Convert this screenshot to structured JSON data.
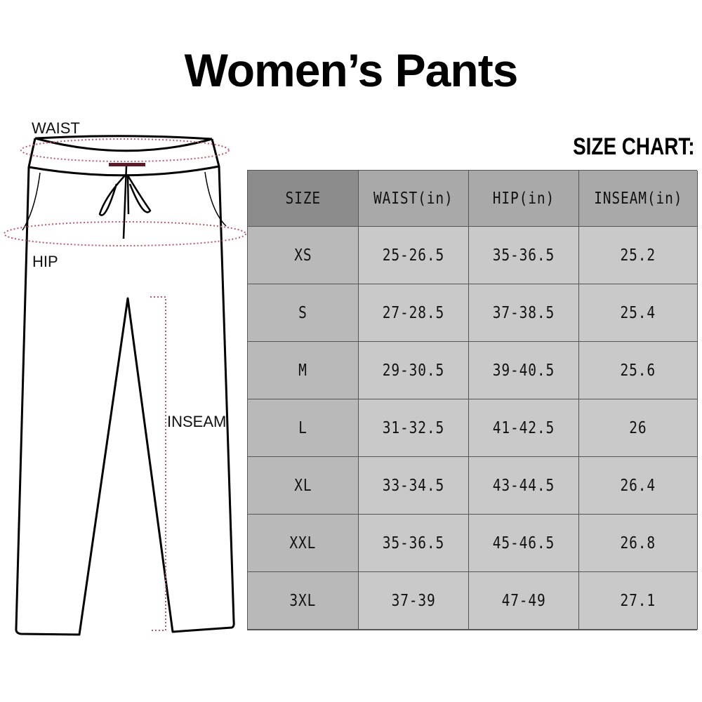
{
  "title": "Women’s Pants",
  "subtitle": "SIZE CHART:",
  "diagram": {
    "labels": {
      "waist": "WAIST",
      "hip": "HIP",
      "inseam": "INSEAM"
    },
    "colors": {
      "outline": "#000000",
      "measure_dots": "#c05a6a"
    }
  },
  "table": {
    "headers": [
      "SIZE",
      "WAIST(in)",
      "HIP(in)",
      "INSEAM(in)"
    ],
    "rows": [
      [
        "XS",
        "25-26.5",
        "35-36.5",
        "25.2"
      ],
      [
        "S",
        "27-28.5",
        "37-38.5",
        "25.4"
      ],
      [
        "M",
        "29-30.5",
        "39-40.5",
        "25.6"
      ],
      [
        "L",
        "31-32.5",
        "41-42.5",
        "26"
      ],
      [
        "XL",
        "33-34.5",
        "43-44.5",
        "26.4"
      ],
      [
        "XXL",
        "35-36.5",
        "45-46.5",
        "26.8"
      ],
      [
        "3XL",
        "37-39",
        "47-49",
        "27.1"
      ]
    ],
    "colors": {
      "size_header": "#8c8c8c",
      "header": "#a9a9a9",
      "size_column": "#b9b9b9",
      "cell": "#c9c9c9"
    }
  }
}
